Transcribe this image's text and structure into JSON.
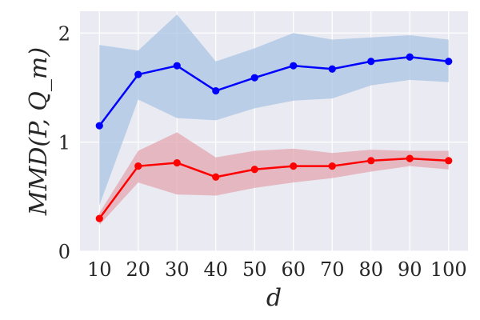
{
  "chart_data": {
    "type": "line",
    "title": "",
    "xlabel": "d",
    "ylabel": "MMD(P, Q_m)",
    "x": [
      10,
      20,
      30,
      40,
      50,
      60,
      70,
      80,
      90,
      100
    ],
    "xlim": [
      5,
      105
    ],
    "ylim": [
      0,
      2.2
    ],
    "xticks": [
      "10",
      "20",
      "30",
      "40",
      "50",
      "60",
      "70",
      "80",
      "90",
      "100"
    ],
    "yticks": [
      {
        "value": 0,
        "label": "0"
      },
      {
        "value": 1,
        "label": "1"
      },
      {
        "value": 2,
        "label": "2"
      }
    ],
    "grid": true,
    "legend": "none",
    "background_color": "#eaeaf2",
    "series": [
      {
        "color": "#0000ff",
        "band_color": "#a9c6e3",
        "values": [
          1.15,
          1.62,
          1.7,
          1.47,
          1.59,
          1.7,
          1.67,
          1.74,
          1.78,
          1.74
        ],
        "lower": [
          0.42,
          1.39,
          1.22,
          1.2,
          1.31,
          1.38,
          1.4,
          1.52,
          1.57,
          1.55
        ],
        "upper": [
          1.89,
          1.84,
          2.17,
          1.74,
          1.86,
          2.0,
          1.94,
          1.96,
          1.98,
          1.94
        ]
      },
      {
        "color": "#ff0000",
        "band_color": "#e3a5b0",
        "values": [
          0.3,
          0.78,
          0.81,
          0.68,
          0.75,
          0.78,
          0.78,
          0.83,
          0.85,
          0.83
        ],
        "lower": [
          0.24,
          0.63,
          0.52,
          0.51,
          0.58,
          0.63,
          0.67,
          0.73,
          0.78,
          0.75
        ],
        "upper": [
          0.35,
          0.92,
          1.09,
          0.86,
          0.92,
          0.94,
          0.9,
          0.93,
          0.92,
          0.92
        ]
      }
    ]
  }
}
